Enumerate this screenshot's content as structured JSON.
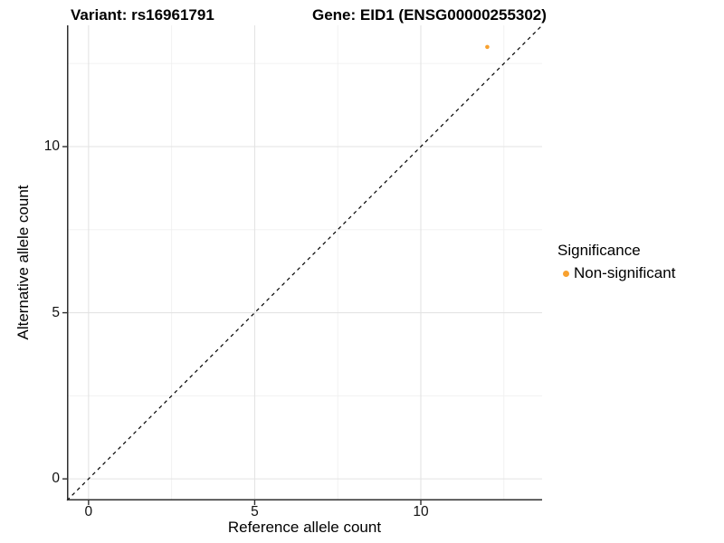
{
  "chart_data": {
    "type": "scatter",
    "titles": {
      "left": "Variant: rs16961791",
      "right": "Gene: EID1 (ENSG00000255302)"
    },
    "xlabel": "Reference allele count",
    "ylabel": "Alternative allele count",
    "xlim": [
      -0.65,
      13.65
    ],
    "ylim": [
      -0.65,
      13.65
    ],
    "x_ticks": [
      0,
      5,
      10
    ],
    "y_ticks": [
      0,
      5,
      10
    ],
    "x_minor_gridlines": [
      2.5,
      7.5,
      12.5
    ],
    "y_minor_gridlines": [
      2.5,
      7.5,
      12.5
    ],
    "grid": true,
    "reference_line": {
      "type": "identity-dashed",
      "from": [
        -0.65,
        -0.65
      ],
      "to": [
        13.65,
        13.65
      ]
    },
    "series": [
      {
        "name": "Non-significant",
        "color": "#F8A12F",
        "points": [
          {
            "x": 12,
            "y": 13
          }
        ]
      }
    ],
    "legend": {
      "title": "Significance",
      "position": "right",
      "entries": [
        {
          "label": "Non-significant",
          "color": "#F8A12F",
          "marker": "circle"
        }
      ]
    },
    "colors": {
      "point": "#F8A12F",
      "grid_major": "#E3E3E3",
      "grid_minor": "#F0F0F0",
      "axis_line": "#2F2F2F",
      "tick_mark": "#2F2F2F",
      "reference_line": "#000000",
      "background": "#FFFFFF"
    }
  }
}
